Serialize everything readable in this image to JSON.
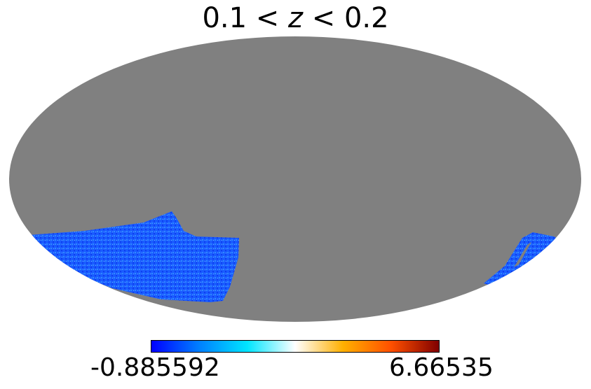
{
  "title": {
    "prefix": "0.1 < ",
    "variable": "z",
    "suffix": " < 0.2"
  },
  "map": {
    "projection": "Mollweide",
    "background_color": "#808080",
    "data_color": "#1a5cff"
  },
  "colorbar": {
    "min_label": "-0.885592",
    "max_label": "6.66535",
    "colormap": [
      "#0000ff",
      "#0080ff",
      "#00e5ff",
      "#ffffff",
      "#ffb000",
      "#ff5000",
      "#800000"
    ]
  }
}
